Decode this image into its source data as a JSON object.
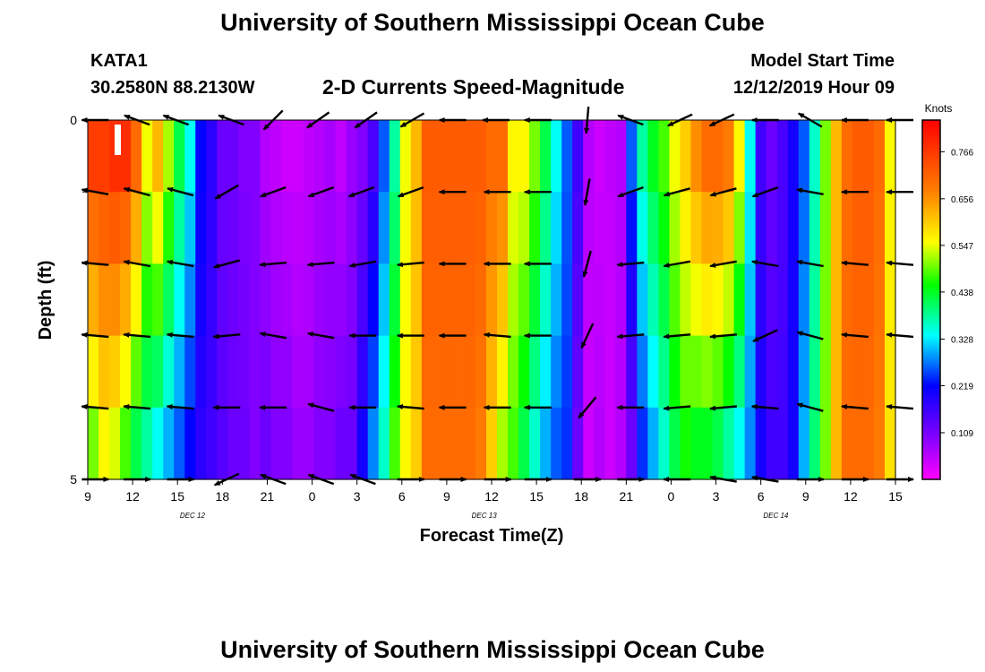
{
  "header": {
    "title": "University of Southern Mississippi Ocean Cube",
    "station": "KATA1",
    "coords": "30.2580N 88.2130W",
    "subtitle": "2-D Currents Speed-Magnitude",
    "model_start_label": "Model Start Time",
    "model_start_time": "12/12/2019 Hour 09"
  },
  "footer": {
    "title": "University of Southern Mississippi Ocean Cube"
  },
  "chart_data": {
    "type": "heatmap",
    "xlabel": "Forecast Time(Z)",
    "ylabel": "Depth (ft)",
    "x_ticks": [
      "9",
      "12",
      "15",
      "18",
      "21",
      "0",
      "3",
      "6",
      "9",
      "12",
      "15",
      "18",
      "21",
      "0",
      "3",
      "6",
      "9",
      "12",
      "15"
    ],
    "x_hours": [
      0,
      3,
      6,
      9,
      12,
      15,
      18,
      21,
      24,
      27,
      30,
      33,
      36,
      39,
      42,
      45,
      48,
      51,
      54
    ],
    "date_labels": [
      {
        "label": "DEC 12",
        "hour": 7
      },
      {
        "label": "DEC 13",
        "hour": 26.5
      },
      {
        "label": "DEC 14",
        "hour": 46
      }
    ],
    "y_ticks": [
      "0",
      "5"
    ],
    "ylim": [
      0,
      5
    ],
    "colorbar": {
      "title": "Knots",
      "ticks": [
        "0.766",
        "0.656",
        "0.547",
        "0.438",
        "0.328",
        "0.219",
        "0.109"
      ],
      "tick_values": [
        0.766,
        0.656,
        0.547,
        0.438,
        0.328,
        0.219,
        0.109
      ],
      "range": [
        0,
        0.84
      ]
    },
    "depth_layers": 5,
    "time_step_hours": 1,
    "speed_profile_surface": [
      0.76,
      0.76,
      0.78,
      0.78,
      0.7,
      0.55,
      0.62,
      0.52,
      0.42,
      0.34,
      0.22,
      0.18,
      0.12,
      0.12,
      0.1,
      0.1,
      0.06,
      0.05,
      0.04,
      0.04,
      0.05,
      0.06,
      0.07,
      0.05,
      0.08,
      0.1,
      0.15,
      0.26,
      0.38,
      0.55,
      0.62,
      0.72,
      0.72,
      0.72,
      0.72,
      0.72,
      0.72,
      0.7,
      0.7,
      0.56,
      0.56,
      0.5,
      0.42,
      0.34,
      0.26,
      0.16,
      0.06,
      0.04,
      0.05,
      0.06,
      0.26,
      0.38,
      0.44,
      0.48,
      0.55,
      0.6,
      0.66,
      0.7,
      0.7,
      0.68,
      0.56,
      0.34,
      0.16,
      0.12,
      0.15,
      0.2,
      0.26,
      0.36,
      0.5,
      0.62,
      0.7,
      0.72,
      0.72,
      0.7,
      0.56
    ],
    "speed_profile_bottom": [
      0.5,
      0.56,
      0.54,
      0.48,
      0.42,
      0.38,
      0.34,
      0.3,
      0.26,
      0.22,
      0.18,
      0.16,
      0.14,
      0.12,
      0.12,
      0.1,
      0.12,
      0.1,
      0.1,
      0.08,
      0.08,
      0.1,
      0.1,
      0.12,
      0.12,
      0.2,
      0.28,
      0.36,
      0.48,
      0.56,
      0.6,
      0.7,
      0.7,
      0.7,
      0.7,
      0.7,
      0.68,
      0.6,
      0.52,
      0.48,
      0.42,
      0.36,
      0.3,
      0.26,
      0.24,
      0.12,
      0.04,
      0.06,
      0.04,
      0.06,
      0.12,
      0.24,
      0.3,
      0.36,
      0.42,
      0.46,
      0.44,
      0.44,
      0.42,
      0.38,
      0.34,
      0.28,
      0.2,
      0.16,
      0.16,
      0.2,
      0.3,
      0.4,
      0.5,
      0.62,
      0.7,
      0.7,
      0.7,
      0.68,
      0.58
    ],
    "vectors": [
      {
        "depth": 0,
        "x_hour": [
          0.5,
          3.3,
          5.9,
          9.6,
          12.4,
          15.4,
          18.6,
          21.7,
          24.4,
          27.3,
          30.1,
          33.4,
          36.3,
          39.6,
          42.4,
          45.3,
          48.3,
          51.3,
          54.3
        ],
        "angle": [
          180,
          200,
          200,
          200,
          135,
          145,
          145,
          150,
          180,
          180,
          180,
          95,
          200,
          155,
          155,
          180,
          210,
          180,
          180
        ]
      },
      {
        "depth": 1,
        "x_hour": [
          0.5,
          3.3,
          6.2,
          9.3,
          12.4,
          15.6,
          18.3,
          21.6,
          24.4,
          27.4,
          30.1,
          33.4,
          36.3,
          39.4,
          42.5,
          45.3,
          48.3,
          51.3,
          54.3
        ],
        "angle": [
          190,
          195,
          195,
          150,
          160,
          160,
          160,
          160,
          180,
          180,
          180,
          100,
          160,
          165,
          165,
          160,
          190,
          180,
          180
        ]
      },
      {
        "depth": 2,
        "x_hour": [
          0.5,
          3.3,
          6.2,
          9.3,
          12.4,
          15.6,
          18.4,
          21.6,
          24.4,
          27.4,
          30.1,
          33.4,
          36.3,
          39.4,
          42.5,
          45.3,
          48.3,
          51.3,
          54.3
        ],
        "angle": [
          185,
          190,
          190,
          165,
          175,
          175,
          170,
          175,
          180,
          180,
          180,
          105,
          175,
          170,
          170,
          190,
          190,
          185,
          185
        ]
      },
      {
        "depth": 3,
        "x_hour": [
          0.5,
          3.3,
          6.2,
          9.3,
          12.4,
          15.6,
          18.4,
          21.6,
          24.4,
          27.4,
          30.1,
          33.4,
          36.3,
          39.4,
          42.5,
          45.3,
          48.3,
          51.3,
          54.3
        ],
        "angle": [
          185,
          185,
          185,
          175,
          190,
          190,
          180,
          180,
          180,
          185,
          180,
          115,
          175,
          175,
          175,
          155,
          195,
          185,
          185
        ]
      },
      {
        "depth": 4,
        "x_hour": [
          0.5,
          3.3,
          6.2,
          9.3,
          12.4,
          15.6,
          18.4,
          21.6,
          24.4,
          27.4,
          30.1,
          33.4,
          36.3,
          39.4,
          42.5,
          45.3,
          48.3,
          51.3,
          54.3
        ],
        "angle": [
          185,
          185,
          185,
          180,
          180,
          195,
          180,
          185,
          180,
          180,
          180,
          130,
          180,
          175,
          175,
          185,
          195,
          185,
          185
        ]
      },
      {
        "depth": 5,
        "x_hour": [
          0.5,
          3.3,
          6.2,
          9.3,
          12.4,
          15.6,
          18.4,
          21.6,
          24.4,
          27.4,
          30.1,
          33.4,
          36.3,
          39.4,
          42.5,
          45.3,
          48.3,
          51.3,
          54.3
        ],
        "angle": [
          0,
          0,
          0,
          155,
          200,
          200,
          200,
          0,
          0,
          0,
          0,
          0,
          0,
          180,
          190,
          190,
          0,
          0,
          0
        ]
      }
    ],
    "grid": false,
    "legend": "right"
  },
  "colors": {
    "colormap": [
      "#ff00ff",
      "#8000ff",
      "#0000ff",
      "#00ffff",
      "#00ff00",
      "#ffff00",
      "#ff8000",
      "#ff0000"
    ]
  }
}
